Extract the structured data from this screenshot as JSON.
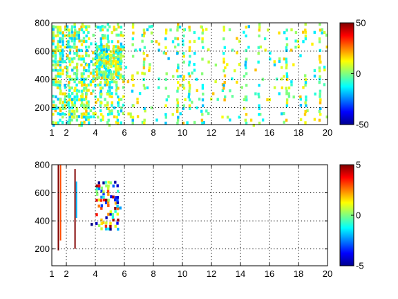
{
  "chart_data": [
    {
      "type": "heatmap",
      "title": "",
      "xlabel": "",
      "ylabel": "",
      "xlim": [
        1,
        20
      ],
      "ylim": [
        80,
        800
      ],
      "xticks": [
        1,
        2,
        4,
        6,
        8,
        10,
        12,
        14,
        16,
        18,
        20
      ],
      "yticks": [
        200,
        400,
        600,
        800
      ],
      "grid": true,
      "colormap": "jet",
      "colorbar": {
        "min": -50,
        "max": 50,
        "ticks": [
          50,
          0,
          -50
        ],
        "position": "right"
      },
      "clusters": [
        {
          "x_range": [
            1.0,
            3.6
          ],
          "y_range": [
            80,
            800
          ],
          "density": 0.55
        },
        {
          "x_range": [
            3.6,
            6.0
          ],
          "y_range": [
            80,
            800
          ],
          "density": 0.33
        },
        {
          "x_range": [
            4.0,
            5.8
          ],
          "y_range": [
            420,
            660
          ],
          "density": 0.85
        },
        {
          "x_range": [
            6.0,
            20.0
          ],
          "y_range": [
            80,
            800
          ],
          "density": 0.06
        }
      ],
      "stripe_x": [
        1.5,
        2.1,
        2.5,
        3.0,
        3.3,
        4.3,
        4.8,
        5.5,
        6.5,
        7.3,
        8.8,
        9.6,
        10.0,
        10.4,
        11.3,
        12.8,
        14.3,
        15.2,
        17.1,
        18.4,
        19.4
      ],
      "value_range": [
        -20,
        20
      ]
    },
    {
      "type": "heatmap",
      "title": "",
      "xlabel": "",
      "ylabel": "",
      "xlim": [
        1,
        20
      ],
      "ylim": [
        80,
        800
      ],
      "xticks": [
        1,
        2,
        4,
        6,
        8,
        10,
        12,
        14,
        16,
        18,
        20
      ],
      "yticks": [
        200,
        400,
        600,
        800
      ],
      "grid": true,
      "colormap": "jet",
      "colorbar": {
        "min": -5,
        "max": 5,
        "ticks": [
          5,
          0,
          -5
        ],
        "position": "right"
      },
      "lines": [
        {
          "x": 1.45,
          "y_range": [
            190,
            800
          ],
          "value": 5
        },
        {
          "x": 1.6,
          "y_range": [
            260,
            800
          ],
          "value": 3
        },
        {
          "x": 2.6,
          "y_range": [
            200,
            770
          ],
          "value": 5
        },
        {
          "x": 2.7,
          "y_range": [
            420,
            680
          ],
          "value": -2
        }
      ],
      "clusters": [
        {
          "x_range": [
            4.0,
            5.6
          ],
          "y_range": [
            350,
            700
          ],
          "density": 0.45
        },
        {
          "x_range": [
            3.5,
            4.0
          ],
          "y_range": [
            300,
            650
          ],
          "density": 0.08
        },
        {
          "x_range": [
            5.6,
            6.0
          ],
          "y_range": [
            430,
            520
          ],
          "density": 0.2
        }
      ],
      "value_range": [
        -5,
        5
      ]
    }
  ]
}
